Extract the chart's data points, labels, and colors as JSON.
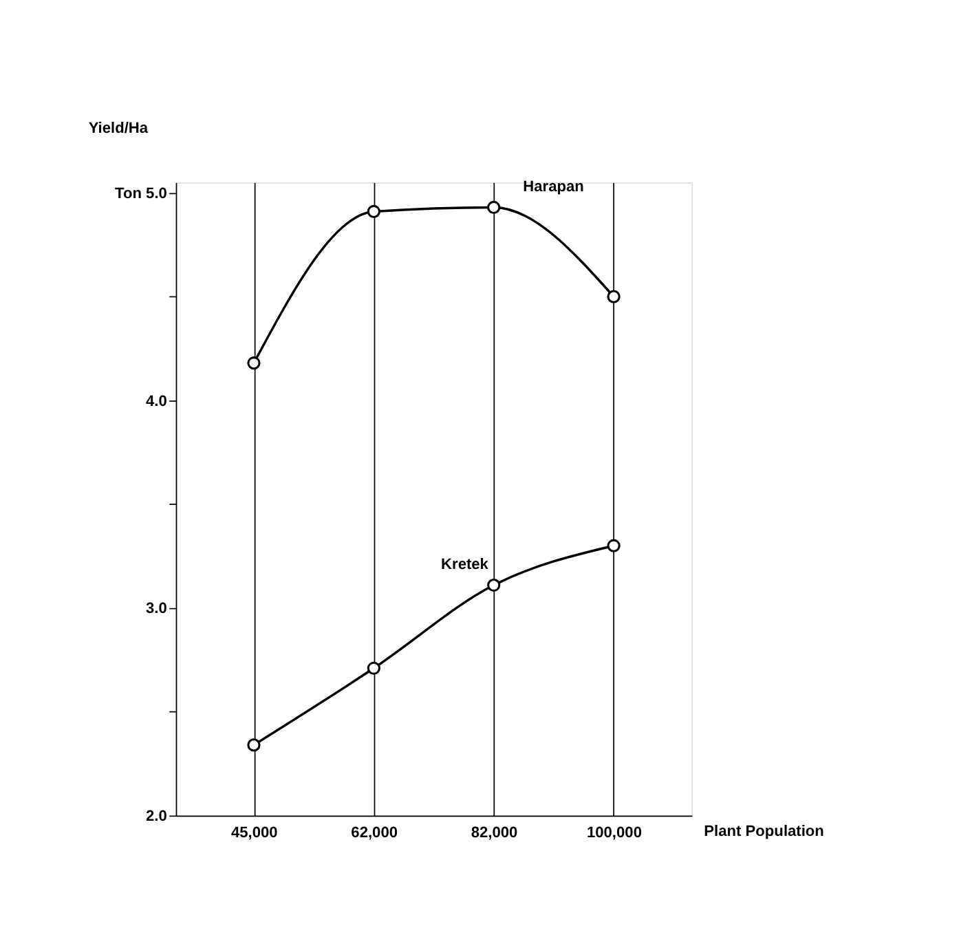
{
  "chart_data": {
    "type": "line",
    "ylabel": "Yield/Ha",
    "xlabel": "Plant Population",
    "categories": [
      "45,000",
      "62,000",
      "82,000",
      "100,000"
    ],
    "series": [
      {
        "name": "Harapan",
        "color": "#000000",
        "values": [
          4.18,
          4.91,
          4.93,
          4.5
        ]
      },
      {
        "name": "Kretek",
        "color": "#000000",
        "values": [
          2.34,
          2.71,
          3.11,
          3.3
        ]
      }
    ],
    "ylim": [
      2,
      5.05
    ],
    "yticks": [
      {
        "value": 2,
        "label": "2.0"
      },
      {
        "value": 2.5,
        "label": null
      },
      {
        "value": 3,
        "label": "3.0"
      },
      {
        "value": 3.5,
        "label": null
      },
      {
        "value": 4,
        "label": "4.0"
      },
      {
        "value": 4.5,
        "label": null
      },
      {
        "value": 5,
        "label": "Ton 5.0"
      }
    ],
    "grid": "x",
    "marker": "circle",
    "line_style": "solid",
    "legend": false
  }
}
